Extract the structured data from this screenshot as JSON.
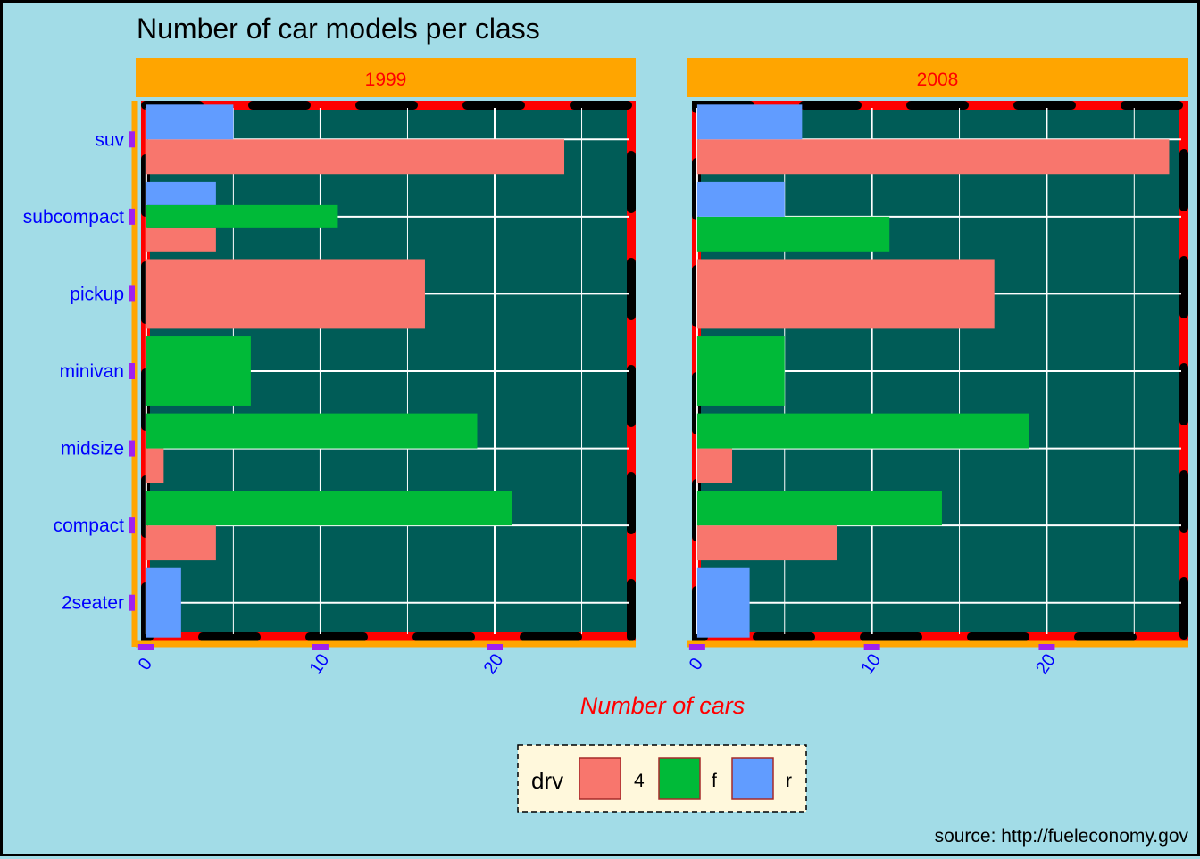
{
  "chart_data": {
    "type": "bar",
    "orientation": "horizontal",
    "title": "Number of car models per class",
    "xlabel": "Number of cars",
    "ylabel": "",
    "caption": "source: http://fueleconomy.gov",
    "categories": [
      "2seater",
      "compact",
      "midsize",
      "minivan",
      "pickup",
      "subcompact",
      "suv"
    ],
    "x_ticks": [
      0,
      10,
      20
    ],
    "xlim": [
      -0.3,
      28.1
    ],
    "grid": true,
    "legend": {
      "title": "drv",
      "placement": "bottom",
      "entries": [
        {
          "label": "4",
          "color": "#f8766d"
        },
        {
          "label": "f",
          "color": "#00ba38"
        },
        {
          "label": "r",
          "color": "#619cff"
        }
      ]
    },
    "colors": {
      "background": "#a2dce7",
      "panel": "#005c57",
      "strip": "#ffa500",
      "grid": "#ffffff",
      "tick_marks": "#a020f0"
    },
    "facets": [
      {
        "label": "1999",
        "series": [
          {
            "name": "4",
            "values": [
              0,
              4,
              1,
              0,
              16,
              4,
              24
            ]
          },
          {
            "name": "f",
            "values": [
              0,
              21,
              19,
              6,
              0,
              11,
              0
            ]
          },
          {
            "name": "r",
            "values": [
              2,
              0,
              0,
              0,
              0,
              4,
              5
            ]
          }
        ]
      },
      {
        "label": "2008",
        "series": [
          {
            "name": "4",
            "values": [
              0,
              8,
              2,
              0,
              17,
              0,
              27
            ]
          },
          {
            "name": "f",
            "values": [
              0,
              14,
              19,
              5,
              0,
              11,
              0
            ]
          },
          {
            "name": "r",
            "values": [
              3,
              0,
              0,
              0,
              0,
              5,
              6
            ]
          }
        ]
      }
    ]
  }
}
